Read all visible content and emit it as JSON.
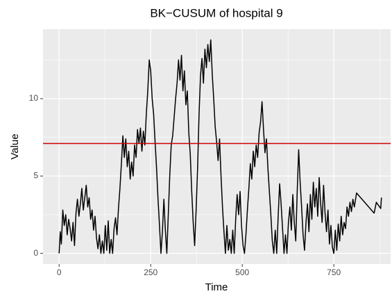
{
  "chart_data": {
    "type": "line",
    "title": "BK−CUSUM of hospital 9",
    "xlabel": "Time",
    "ylabel": "Value",
    "xlim": [
      -44,
      905
    ],
    "ylim": [
      -0.69,
      14.49
    ],
    "xticks": [
      0,
      250,
      500,
      750
    ],
    "yticks": [
      0,
      5,
      10
    ],
    "grid": true,
    "minor_grid": true,
    "color": "#000000",
    "hline": {
      "value": 7.1,
      "color": "#cc0000"
    },
    "x": [
      0,
      3,
      6,
      10,
      14,
      18,
      22,
      26,
      30,
      34,
      38,
      42,
      46,
      50,
      54,
      58,
      62,
      66,
      70,
      74,
      78,
      82,
      86,
      90,
      94,
      98,
      102,
      106,
      110,
      114,
      118,
      122,
      126,
      130,
      134,
      138,
      142,
      146,
      150,
      154,
      158,
      162,
      166,
      170,
      174,
      178,
      182,
      186,
      190,
      194,
      198,
      202,
      206,
      210,
      214,
      218,
      222,
      226,
      230,
      234,
      238,
      242,
      246,
      250,
      254,
      258,
      262,
      266,
      270,
      274,
      278,
      282,
      286,
      290,
      294,
      298,
      302,
      306,
      310,
      314,
      318,
      322,
      326,
      330,
      334,
      338,
      342,
      346,
      350,
      354,
      358,
      362,
      366,
      370,
      374,
      378,
      382,
      386,
      390,
      394,
      398,
      402,
      406,
      410,
      414,
      418,
      422,
      426,
      430,
      434,
      438,
      442,
      446,
      450,
      454,
      458,
      462,
      466,
      470,
      474,
      478,
      482,
      486,
      490,
      494,
      498,
      502,
      506,
      510,
      514,
      518,
      522,
      526,
      530,
      534,
      538,
      542,
      546,
      550,
      554,
      558,
      562,
      566,
      570,
      574,
      578,
      582,
      586,
      590,
      594,
      598,
      602,
      606,
      610,
      614,
      618,
      622,
      626,
      630,
      634,
      638,
      642,
      646,
      650,
      654,
      658,
      662,
      666,
      670,
      674,
      678,
      682,
      686,
      690,
      694,
      698,
      702,
      706,
      710,
      714,
      718,
      722,
      726,
      730,
      734,
      738,
      742,
      746,
      750,
      754,
      758,
      762,
      766,
      770,
      774,
      778,
      782,
      786,
      790,
      794,
      798,
      802,
      806,
      812,
      860,
      866,
      878,
      880
    ],
    "values": [
      0,
      1.4,
      0.6,
      2.8,
      1.8,
      2.5,
      1.2,
      2.2,
      1.6,
      0.8,
      2.0,
      0.5,
      2.6,
      3.5,
      2.4,
      3.2,
      4.2,
      2.8,
      3.6,
      4.4,
      3.0,
      3.6,
      2.2,
      2.8,
      1.5,
      2.4,
      1.0,
      0.3,
      1.2,
      0,
      0.8,
      0,
      1.8,
      0.2,
      2.1,
      0,
      0.9,
      0,
      1.6,
      2.3,
      1.2,
      2.9,
      4.2,
      5.8,
      7.6,
      6.2,
      7.4,
      5.6,
      6.6,
      4.8,
      5.9,
      5.0,
      7.0,
      6.2,
      8.0,
      7.1,
      8.1,
      6.6,
      7.9,
      7.0,
      9.0,
      10.5,
      12.5,
      11.8,
      10.0,
      9.0,
      7.2,
      5.5,
      3.5,
      1.8,
      0,
      1.4,
      3.5,
      1.5,
      0,
      2.5,
      5.0,
      7.0,
      7.6,
      8.8,
      10.0,
      11.0,
      12.5,
      11.2,
      12.8,
      10.5,
      11.8,
      9.6,
      10.5,
      7.8,
      6.4,
      4.0,
      2.0,
      0.5,
      2.8,
      5.5,
      9.0,
      11.5,
      12.6,
      11.0,
      13.2,
      12.0,
      13.5,
      12.4,
      13.8,
      11.6,
      10.0,
      8.2,
      7.2,
      6.0,
      7.4,
      5.0,
      3.0,
      1.4,
      0,
      1.8,
      0.2,
      0.9,
      0,
      1.5,
      0,
      2.2,
      3.8,
      2.5,
      4.0,
      1.8,
      0.5,
      0,
      1.2,
      2.8,
      4.2,
      5.8,
      4.8,
      6.6,
      5.6,
      7.0,
      6.2,
      7.8,
      8.5,
      9.8,
      8.0,
      6.5,
      7.4,
      5.5,
      4.0,
      2.5,
      0.8,
      0,
      1.5,
      0,
      2.4,
      4.5,
      3.2,
      1.6,
      0,
      1.2,
      0,
      2.0,
      3.0,
      1.5,
      3.8,
      2.0,
      0.8,
      4.0,
      6.7,
      4.6,
      3.0,
      1.2,
      0.2,
      2.0,
      3.2,
      1.4,
      3.8,
      2.2,
      4.6,
      3.0,
      4.2,
      2.4,
      4.9,
      3.2,
      2.0,
      4.4,
      2.6,
      1.4,
      2.8,
      0.6,
      1.8,
      0.4,
      0,
      1.5,
      0.2,
      1.9,
      0.8,
      2.4,
      1.2,
      2.0,
      1.6,
      3.0,
      2.4,
      3.3,
      2.7,
      3.5,
      3.0,
      3.9,
      2.6,
      3.3,
      2.9,
      3.6
    ]
  }
}
